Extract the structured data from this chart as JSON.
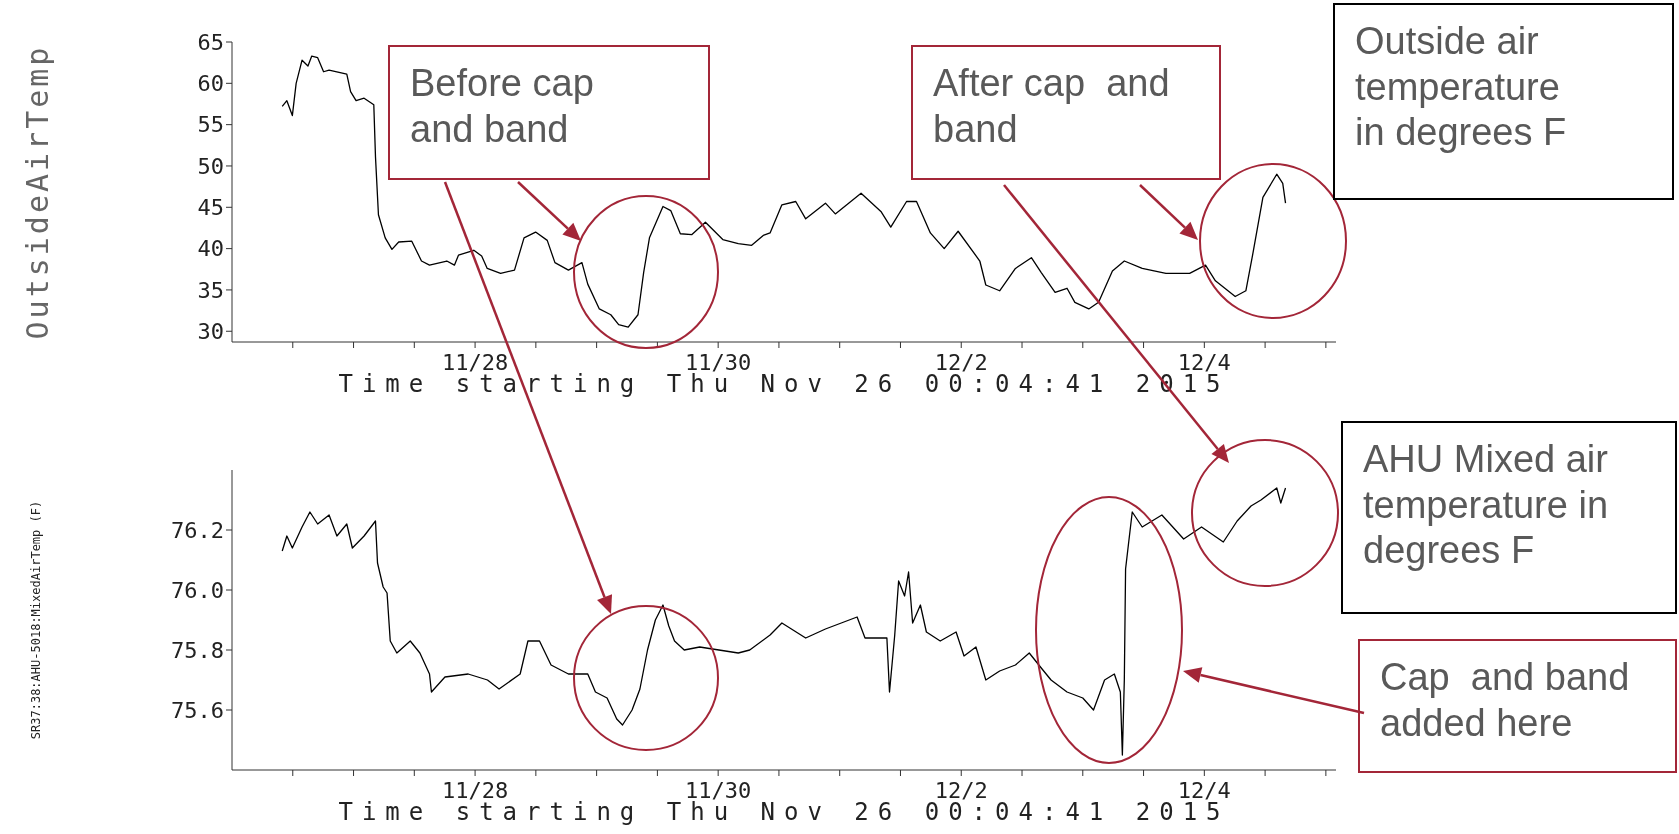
{
  "chart_data": [
    {
      "type": "line",
      "ylabel": "OutsideAirTemp",
      "xlabel": "Time starting Thu Nov 26 00:04:41 2015",
      "annotations": [
        "Before cap and band",
        "After cap  and band",
        "Outside air temperature in degrees F"
      ],
      "x": [
        "2015-11-26T09:55",
        "2015-11-26T10:50",
        "2015-11-26T11:55",
        "2015-11-26T12:40",
        "2015-11-26T13:50",
        "2015-11-26T15:00",
        "2015-11-26T15:45",
        "2015-11-26T16:55",
        "2015-11-26T18:05",
        "2015-11-26T19:10",
        "2015-11-26T22:40",
        "2015-11-26T23:25",
        "2015-11-27T00:30",
        "2015-11-27T02:05",
        "2015-11-27T04:00",
        "2015-11-27T04:20",
        "2015-11-27T04:55",
        "2015-11-27T06:15",
        "2015-11-27T07:35",
        "2015-11-27T08:55",
        "2015-11-27T11:30",
        "2015-11-27T13:25",
        "2015-11-27T15:00",
        "2015-11-27T18:25",
        "2015-11-27T19:55",
        "2015-11-27T20:43",
        "2015-11-27T23:45",
        "2015-11-28T01:18",
        "2015-11-28T02:24",
        "2015-11-28T05:02",
        "2015-11-28T07:47",
        "2015-11-28T09:40",
        "2015-11-28T11:57",
        "2015-11-28T14:15",
        "2015-11-28T15:46",
        "2015-11-28T18:26",
        "2015-11-28T21:06",
        "2015-11-28T22:15",
        "2015-11-29T00:32",
        "2015-11-29T02:48",
        "2015-11-29T04:21",
        "2015-11-29T06:14",
        "2015-11-29T08:10",
        "2015-11-29T09:17",
        "2015-11-29T10:26",
        "2015-11-29T13:06",
        "2015-11-29T14:38",
        "2015-11-29T16:32",
        "2015-11-29T18:49",
        "2015-11-29T21:29",
        "2015-11-30T00:55",
        "2015-11-30T03:58",
        "2015-11-30T06:37",
        "2015-11-30T08:54",
        "2015-11-30T10:15",
        "2015-11-30T12:35",
        "2015-11-30T15:19",
        "2015-11-30T17:17",
        "2015-11-30T21:11",
        "2015-11-30T23:08",
        "2015-12-01T04:13",
        "2015-12-01T08:08",
        "2015-12-01T10:05",
        "2015-12-01T13:12",
        "2015-12-01T15:10",
        "2015-12-01T17:54",
        "2015-12-01T20:38",
        "2015-12-01T23:23",
        "2015-12-02T03:40",
        "2015-12-02T04:51",
        "2015-12-02T07:35",
        "2015-12-02T10:42",
        "2015-12-02T13:51",
        "2015-12-02T15:48",
        "2015-12-02T18:32",
        "2015-12-02T20:53",
        "2015-12-02T22:26",
        "2015-12-03T01:11",
        "2015-12-03T03:07",
        "2015-12-03T05:51",
        "2015-12-03T08:12",
        "2015-12-03T11:44",
        "2015-12-03T16:25",
        "2015-12-03T21:06",
        "2015-12-04T00:14",
        "2015-12-04T02:11",
        "2015-12-04T06:06",
        "2015-12-04T08:12",
        "2015-12-04T09:37",
        "2015-12-04T11:34",
        "2015-12-04T14:18",
        "2015-12-04T15:29",
        "2015-12-04T16:02"
      ],
      "series": [
        {
          "color": "#000000",
          "values": [
            57.2,
            57.9,
            56.1,
            60.0,
            62.8,
            62.1,
            63.3,
            63.1,
            61.4,
            61.6,
            61.1,
            59.0,
            57.9,
            58.2,
            57.4,
            51.1,
            44.1,
            41.3,
            39.9,
            40.8,
            40.9,
            38.5,
            38.0,
            38.5,
            38.0,
            39.2,
            39.8,
            39.1,
            37.6,
            37.0,
            37.4,
            41.3,
            42.0,
            41.0,
            38.3,
            37.4,
            38.3,
            35.7,
            32.7,
            32.0,
            30.8,
            30.5,
            32.0,
            37.1,
            41.3,
            45.1,
            44.6,
            41.8,
            41.7,
            43.2,
            41.1,
            40.6,
            40.4,
            41.6,
            41.9,
            45.3,
            45.7,
            43.6,
            45.5,
            44.2,
            46.7,
            44.5,
            42.6,
            45.7,
            45.7,
            41.9,
            40.0,
            42.1,
            38.5,
            35.6,
            34.9,
            37.6,
            38.9,
            37.1,
            34.7,
            35.2,
            33.5,
            32.7,
            33.5,
            37.3,
            38.5,
            37.6,
            37.0,
            37.0,
            38.0,
            36.1,
            34.2,
            34.9,
            39.5,
            46.2,
            49.0,
            47.9,
            45.5
          ]
        }
      ],
      "xlim": [
        "2015-11-26T00:00",
        "2015-12-05T02:00"
      ],
      "xticks": [
        {
          "value": "2015-11-26T12:00",
          "label": null
        },
        {
          "value": "2015-11-27T00:00",
          "label": null
        },
        {
          "value": "2015-11-27T12:00",
          "label": null
        },
        {
          "value": "2015-11-28T00:00",
          "label": "11/28"
        },
        {
          "value": "2015-11-28T12:00",
          "label": null
        },
        {
          "value": "2015-11-29T00:00",
          "label": null
        },
        {
          "value": "2015-11-29T12:00",
          "label": null
        },
        {
          "value": "2015-11-30T00:00",
          "label": "11/30"
        },
        {
          "value": "2015-11-30T12:00",
          "label": null
        },
        {
          "value": "2015-12-01T00:00",
          "label": null
        },
        {
          "value": "2015-12-01T12:00",
          "label": null
        },
        {
          "value": "2015-12-02T00:00",
          "label": "12/2"
        },
        {
          "value": "2015-12-02T12:00",
          "label": null
        },
        {
          "value": "2015-12-03T00:00",
          "label": null
        },
        {
          "value": "2015-12-03T12:00",
          "label": null
        },
        {
          "value": "2015-12-04T00:00",
          "label": "12/4"
        },
        {
          "value": "2015-12-04T12:00",
          "label": null
        },
        {
          "value": "2015-12-05T00:00",
          "label": null
        }
      ],
      "ylim": [
        28.7,
        65
      ],
      "yticks": [
        30,
        35,
        40,
        45,
        50,
        55,
        60,
        65
      ]
    },
    {
      "type": "line",
      "ylabel": "SR37:38:AHU-5018:MixedAirTemp (F)",
      "xlabel": "Time starting Thu Nov 26 00:04:41 2015",
      "annotations": [
        "AHU Mixed air temperature in degrees F",
        "Cap  and band added here"
      ],
      "x": [
        "2015-11-26T09:55",
        "2015-11-26T10:50",
        "2015-11-26T11:55",
        "2015-11-26T13:50",
        "2015-11-26T15:23",
        "2015-11-26T16:55",
        "2015-11-26T19:10",
        "2015-11-26T20:43",
        "2015-11-26T22:40",
        "2015-11-26T23:46",
        "2015-11-27T02:05",
        "2015-11-27T04:20",
        "2015-11-27T04:44",
        "2015-11-27T05:51",
        "2015-11-27T06:37",
        "2015-11-27T07:15",
        "2015-11-27T08:33",
        "2015-11-27T11:12",
        "2015-11-27T13:06",
        "2015-11-27T15:00",
        "2015-11-27T15:23",
        "2015-11-27T18:03",
        "2015-11-27T22:38",
        "2015-11-28T02:27",
        "2015-11-28T04:44",
        "2015-11-28T08:54",
        "2015-11-28T10:26",
        "2015-11-28T12:43",
        "2015-11-28T15:00",
        "2015-11-28T18:26",
        "2015-11-28T22:15",
        "2015-11-28T23:46",
        "2015-11-29T02:04",
        "2015-11-29T03:58",
        "2015-11-29T05:07",
        "2015-11-29T07:00",
        "2015-11-29T08:33",
        "2015-11-29T10:03",
        "2015-11-29T11:36",
        "2015-11-29T13:06",
        "2015-11-29T14:15",
        "2015-11-29T15:23",
        "2015-11-29T17:18",
        "2015-11-29T20:21",
        "2015-11-30T00:09",
        "2015-11-30T03:58",
        "2015-11-30T06:14",
        "2015-11-30T10:15",
        "2015-11-30T12:35",
        "2015-11-30T17:17",
        "2015-11-30T21:11",
        "2015-12-01T03:26",
        "2015-12-01T05:00",
        "2015-12-01T09:19",
        "2015-12-01T09:50",
        "2015-12-01T10:52",
        "2015-12-01T11:38",
        "2015-12-01T12:49",
        "2015-12-01T13:36",
        "2015-12-01T14:24",
        "2015-12-01T15:56",
        "2015-12-01T17:07",
        "2015-12-01T19:51",
        "2015-12-01T22:59",
        "2015-12-02T00:33",
        "2015-12-02T02:54",
        "2015-12-02T04:51",
        "2015-12-02T07:35",
        "2015-12-02T10:42",
        "2015-12-02T13:26",
        "2015-12-02T15:48",
        "2015-12-02T17:44",
        "2015-12-02T20:53",
        "2015-12-03T00:00",
        "2015-12-03T02:07",
        "2015-12-03T04:18",
        "2015-12-03T06:14",
        "2015-12-03T07:25",
        "2015-12-03T07:49",
        "2015-12-03T08:12",
        "2015-12-03T08:27",
        "2015-12-03T09:00",
        "2015-12-03T09:46",
        "2015-12-03T11:44",
        "2015-12-03T15:37",
        "2015-12-03T19:55",
        "2015-12-03T23:27",
        "2015-12-04T03:45",
        "2015-12-04T06:29",
        "2015-12-04T09:13",
        "2015-12-04T11:11",
        "2015-12-04T14:18",
        "2015-12-04T15:06",
        "2015-12-04T16:02"
      ],
      "series": [
        {
          "color": "#000000",
          "values": [
            76.13,
            76.18,
            76.14,
            76.21,
            76.26,
            76.22,
            76.25,
            76.18,
            76.22,
            76.14,
            76.18,
            76.23,
            76.09,
            76.01,
            75.99,
            75.83,
            75.79,
            75.83,
            75.79,
            75.72,
            75.66,
            75.71,
            75.72,
            75.7,
            75.67,
            75.72,
            75.83,
            75.83,
            75.75,
            75.72,
            75.72,
            75.66,
            75.64,
            75.57,
            75.55,
            75.6,
            75.67,
            75.8,
            75.9,
            75.95,
            75.88,
            75.83,
            75.8,
            75.81,
            75.8,
            75.79,
            75.8,
            75.85,
            75.89,
            75.84,
            75.87,
            75.91,
            75.84,
            75.84,
            75.66,
            75.85,
            76.03,
            75.98,
            76.06,
            75.89,
            75.95,
            75.86,
            75.83,
            75.86,
            75.78,
            75.81,
            75.7,
            75.73,
            75.75,
            75.79,
            75.74,
            75.7,
            75.66,
            75.64,
            75.6,
            75.7,
            75.72,
            75.66,
            75.45,
            75.7,
            76.07,
            76.15,
            76.26,
            76.21,
            76.25,
            76.17,
            76.21,
            76.16,
            76.23,
            76.28,
            76.3,
            76.34,
            76.29,
            76.34
          ]
        }
      ],
      "xlim": [
        "2015-11-26T00:00",
        "2015-12-05T02:00"
      ],
      "xticks": [
        {
          "value": "2015-11-26T12:00",
          "label": null
        },
        {
          "value": "2015-11-27T00:00",
          "label": null
        },
        {
          "value": "2015-11-27T12:00",
          "label": null
        },
        {
          "value": "2015-11-28T00:00",
          "label": "11/28"
        },
        {
          "value": "2015-11-28T12:00",
          "label": null
        },
        {
          "value": "2015-11-29T00:00",
          "label": null
        },
        {
          "value": "2015-11-29T12:00",
          "label": null
        },
        {
          "value": "2015-11-30T00:00",
          "label": "11/30"
        },
        {
          "value": "2015-11-30T12:00",
          "label": null
        },
        {
          "value": "2015-12-01T00:00",
          "label": null
        },
        {
          "value": "2015-12-01T12:00",
          "label": null
        },
        {
          "value": "2015-12-02T00:00",
          "label": "12/2"
        },
        {
          "value": "2015-12-02T12:00",
          "label": null
        },
        {
          "value": "2015-12-03T00:00",
          "label": null
        },
        {
          "value": "2015-12-03T12:00",
          "label": null
        },
        {
          "value": "2015-12-04T00:00",
          "label": "12/4"
        },
        {
          "value": "2015-12-04T12:00",
          "label": null
        },
        {
          "value": "2015-12-05T00:00",
          "label": null
        }
      ],
      "ylim": [
        75.4,
        76.4
      ],
      "yticks": [
        75.6,
        75.8,
        {
          "value": 76,
          "label": "76.0"
        },
        76.2
      ]
    }
  ]
}
